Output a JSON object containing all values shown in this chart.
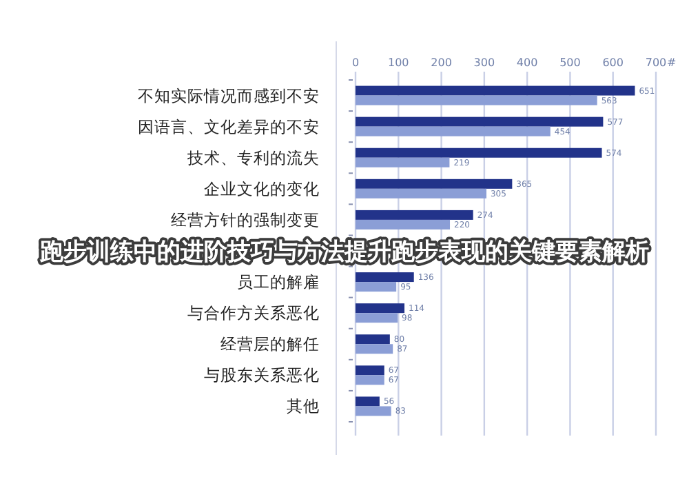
{
  "chart_data": {
    "type": "bar",
    "orientation": "horizontal",
    "xlabel": "#",
    "categories": [
      "不知实际情况而感到不安",
      "因语言、文化差异的不安",
      "技术、专利的流失",
      "企业文化的变化",
      "经营方针的强制变更",
      null,
      "员工的解雇",
      "与合作方关系恶化",
      "经营层的解任",
      "与股东关系恶化",
      "其他"
    ],
    "series": [
      {
        "color": "#22338a",
        "values": [
          651,
          577,
          574,
          365,
          274,
          null,
          136,
          114,
          80,
          67,
          56
        ]
      },
      {
        "color": "#8b9ed6",
        "values": [
          563,
          454,
          219,
          305,
          220,
          null,
          95,
          98,
          87,
          67,
          83
        ]
      }
    ],
    "xlim": [
      0,
      700
    ],
    "xticks": [
      0,
      100,
      200,
      300,
      400,
      500,
      600,
      700
    ],
    "grid": "x",
    "data_labels": true,
    "annotations": [
      "跑步训练中的进阶技巧与方法提升跑步表现的关键要素解析"
    ]
  }
}
